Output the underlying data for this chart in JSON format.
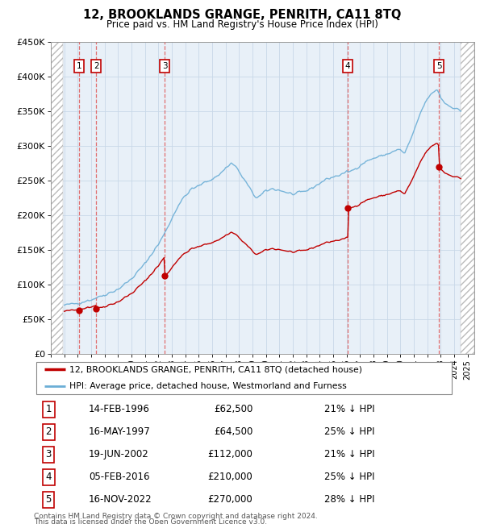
{
  "title": "12, BROOKLANDS GRANGE, PENRITH, CA11 8TQ",
  "subtitle": "Price paid vs. HM Land Registry's House Price Index (HPI)",
  "legend_line1": "12, BROOKLANDS GRANGE, PENRITH, CA11 8TQ (detached house)",
  "legend_line2": "HPI: Average price, detached house, Westmorland and Furness",
  "footnote1": "Contains HM Land Registry data © Crown copyright and database right 2024.",
  "footnote2": "This data is licensed under the Open Government Licence v3.0.",
  "ylim": [
    0,
    450000
  ],
  "yticks": [
    0,
    50000,
    100000,
    150000,
    200000,
    250000,
    300000,
    350000,
    400000,
    450000
  ],
  "ytick_labels": [
    "£0",
    "£50K",
    "£100K",
    "£150K",
    "£200K",
    "£250K",
    "£300K",
    "£350K",
    "£400K",
    "£450K"
  ],
  "xlim_start": 1994.0,
  "xlim_end": 2025.5,
  "hpi_color": "#6baed6",
  "price_color": "#c00000",
  "marker_color": "#c00000",
  "dashed_line_color": "#e06060",
  "grid_color": "#c8d8e8",
  "bg_color": "#e8f0f8",
  "transactions": [
    {
      "num": 1,
      "date": "14-FEB-1996",
      "price": 62500,
      "pct": "21%",
      "x": 1996.12
    },
    {
      "num": 2,
      "date": "16-MAY-1997",
      "price": 64500,
      "pct": "25%",
      "x": 1997.38
    },
    {
      "num": 3,
      "date": "19-JUN-2002",
      "price": 112000,
      "pct": "21%",
      "x": 2002.46
    },
    {
      "num": 4,
      "date": "05-FEB-2016",
      "price": 210000,
      "pct": "25%",
      "x": 2016.09
    },
    {
      "num": 5,
      "date": "16-NOV-2022",
      "price": 270000,
      "pct": "28%",
      "x": 2022.88
    }
  ]
}
